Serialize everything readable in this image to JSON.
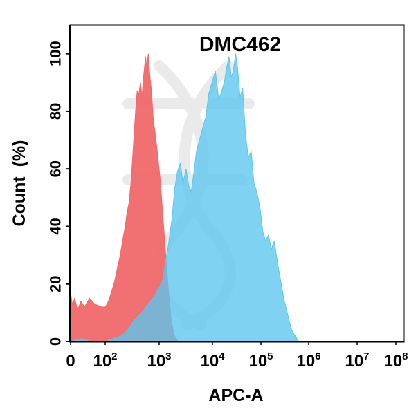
{
  "chart_data": {
    "type": "area",
    "title": "DMC462",
    "xlabel": "APC-A",
    "ylabel": "Count  (%)",
    "x_scale": "biexponential",
    "xlim": [
      0,
      100000000
    ],
    "ylim": [
      0,
      110
    ],
    "yticks": [
      0,
      20,
      40,
      60,
      80,
      100
    ],
    "xticks": [
      {
        "value": 0,
        "base": "0",
        "exp": ""
      },
      {
        "value": 100,
        "base": "10",
        "exp": "2"
      },
      {
        "value": 1000,
        "base": "10",
        "exp": "3"
      },
      {
        "value": 10000,
        "base": "10",
        "exp": "4"
      },
      {
        "value": 100000,
        "base": "10",
        "exp": "5"
      },
      {
        "value": 1000000,
        "base": "10",
        "exp": "6"
      },
      {
        "value": 10000000,
        "base": "10",
        "exp": "7"
      },
      {
        "value": 100000000,
        "base": "10",
        "exp": "8"
      }
    ],
    "grid": false,
    "series": [
      {
        "color": "#f0696b",
        "points": [
          [
            0,
            17
          ],
          [
            5,
            13
          ],
          [
            12,
            15
          ],
          [
            20,
            11
          ],
          [
            30,
            14
          ],
          [
            40,
            12
          ],
          [
            55,
            15
          ],
          [
            70,
            13
          ],
          [
            90,
            12
          ],
          [
            100,
            12
          ],
          [
            115,
            14
          ],
          [
            130,
            17
          ],
          [
            150,
            21
          ],
          [
            170,
            26
          ],
          [
            190,
            30
          ],
          [
            210,
            35
          ],
          [
            235,
            40
          ],
          [
            255,
            45
          ],
          [
            275,
            48
          ],
          [
            300,
            55
          ],
          [
            320,
            63
          ],
          [
            340,
            71
          ],
          [
            365,
            80
          ],
          [
            390,
            87
          ],
          [
            420,
            86
          ],
          [
            450,
            90
          ],
          [
            480,
            85
          ],
          [
            520,
            93
          ],
          [
            560,
            99
          ],
          [
            590,
            95
          ],
          [
            630,
            100
          ],
          [
            670,
            93
          ],
          [
            720,
            87
          ],
          [
            780,
            77
          ],
          [
            850,
            72
          ],
          [
            950,
            64
          ],
          [
            1050,
            56
          ],
          [
            1150,
            46
          ],
          [
            1280,
            34
          ],
          [
            1400,
            24
          ],
          [
            1520,
            16
          ],
          [
            1680,
            8
          ],
          [
            1850,
            3
          ],
          [
            2050,
            1
          ],
          [
            2300,
            0
          ]
        ]
      },
      {
        "color": "#5bc5ee",
        "points": [
          [
            0,
            0
          ],
          [
            30,
            1
          ],
          [
            60,
            0
          ],
          [
            100,
            0
          ],
          [
            140,
            1
          ],
          [
            200,
            2
          ],
          [
            260,
            4
          ],
          [
            330,
            7
          ],
          [
            420,
            9
          ],
          [
            520,
            11
          ],
          [
            620,
            13
          ],
          [
            760,
            15
          ],
          [
            880,
            17
          ],
          [
            1000,
            19
          ],
          [
            1150,
            21
          ],
          [
            1300,
            27
          ],
          [
            1500,
            34
          ],
          [
            1750,
            43
          ],
          [
            1950,
            53
          ],
          [
            2200,
            59
          ],
          [
            2500,
            62
          ],
          [
            2800,
            55
          ],
          [
            3200,
            60
          ],
          [
            3600,
            54
          ],
          [
            4000,
            52
          ],
          [
            4500,
            59
          ],
          [
            5000,
            66
          ],
          [
            5700,
            70
          ],
          [
            6500,
            74
          ],
          [
            7500,
            78
          ],
          [
            8500,
            86
          ],
          [
            9800,
            90
          ],
          [
            11500,
            94
          ],
          [
            13500,
            84
          ],
          [
            15500,
            87
          ],
          [
            17500,
            90
          ],
          [
            19500,
            95
          ],
          [
            22000,
            99
          ],
          [
            24500,
            92
          ],
          [
            27000,
            94
          ],
          [
            30000,
            100
          ],
          [
            33000,
            95
          ],
          [
            37000,
            85
          ],
          [
            42000,
            88
          ],
          [
            48000,
            72
          ],
          [
            55000,
            64
          ],
          [
            63000,
            66
          ],
          [
            72000,
            55
          ],
          [
            82000,
            52
          ],
          [
            95000,
            47
          ],
          [
            110000,
            38
          ],
          [
            125000,
            35
          ],
          [
            145000,
            37
          ],
          [
            165000,
            32
          ],
          [
            190000,
            35
          ],
          [
            220000,
            28
          ],
          [
            260000,
            21
          ],
          [
            310000,
            14
          ],
          [
            370000,
            9
          ],
          [
            440000,
            4
          ],
          [
            520000,
            2
          ],
          [
            620000,
            0
          ]
        ]
      }
    ]
  }
}
